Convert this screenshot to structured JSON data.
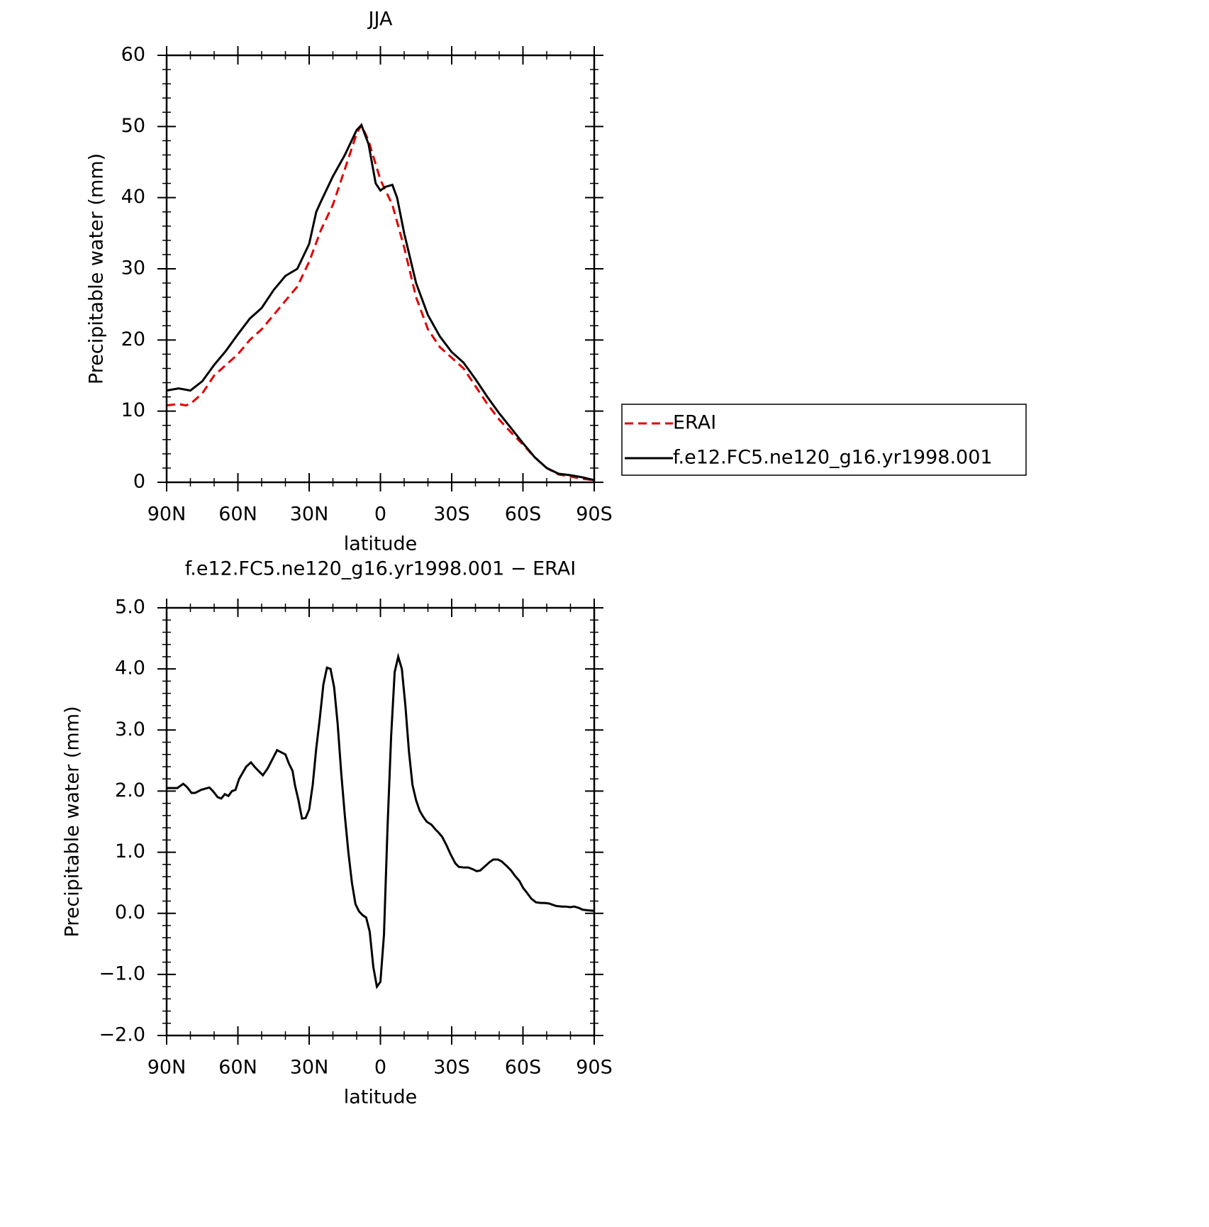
{
  "chart_data": [
    {
      "type": "line",
      "title": "JJA",
      "xlabel": "latitude",
      "ylabel": "Precipitable water (mm)",
      "xlim": [
        90,
        -90
      ],
      "xticks": [
        {
          "value": 90,
          "label": "90N"
        },
        {
          "value": 60,
          "label": "60N"
        },
        {
          "value": 30,
          "label": "30N"
        },
        0,
        {
          "value": -30,
          "label": "30S"
        },
        {
          "value": -60,
          "label": "60S"
        },
        {
          "value": -90,
          "label": "90S"
        }
      ],
      "ylim": [
        0,
        60
      ],
      "yticks": [
        0,
        10,
        20,
        30,
        40,
        50,
        60
      ],
      "legend": "right",
      "series": [
        {
          "name": "ERAI",
          "color": "#e00000",
          "style": "dashed",
          "x": [
            90,
            85,
            82,
            80,
            75,
            70,
            65,
            60,
            55,
            50,
            45,
            40,
            35,
            30,
            25,
            20,
            15,
            10,
            8,
            5,
            0,
            -5,
            -10,
            -15,
            -20,
            -25,
            -30,
            -35,
            -40,
            -45,
            -50,
            -55,
            -60,
            -65,
            -70,
            -75,
            -80,
            -85,
            -90
          ],
          "values": [
            10.8,
            11.0,
            10.8,
            11.0,
            12.5,
            15,
            16.5,
            18,
            20,
            21.5,
            23.5,
            25.5,
            27.5,
            31,
            35.5,
            39,
            44,
            49,
            50.2,
            48,
            42.5,
            39,
            33,
            26,
            21.5,
            19,
            17.5,
            16,
            13.5,
            11,
            8.8,
            7,
            5.3,
            3.5,
            2,
            1.1,
            0.8,
            0.5,
            0.3
          ]
        },
        {
          "name": "f.e12.FC5.ne120_g16.yr1998.001",
          "color": "#000000",
          "style": "solid",
          "x": [
            90,
            85,
            80,
            75,
            70,
            65,
            60,
            55,
            50,
            45,
            40,
            35,
            30,
            27,
            25,
            20,
            15,
            10,
            8,
            5,
            2,
            0,
            -2,
            -5,
            -7,
            -10,
            -15,
            -20,
            -25,
            -30,
            -35,
            -40,
            -45,
            -50,
            -55,
            -60,
            -65,
            -70,
            -75,
            -80,
            -85,
            -90
          ],
          "values": [
            12.9,
            13.2,
            12.9,
            14.2,
            16.5,
            18.5,
            20.8,
            23,
            24.5,
            27,
            29,
            30,
            33.5,
            38,
            39.5,
            43,
            46,
            49.5,
            50.2,
            47.5,
            42,
            41,
            41.5,
            41.8,
            40,
            35,
            28,
            23.5,
            20.5,
            18.3,
            16.8,
            14.5,
            12,
            9.7,
            7.6,
            5.5,
            3.5,
            2.0,
            1.2,
            1.0,
            0.7,
            0.3
          ]
        }
      ]
    },
    {
      "type": "line",
      "title": "f.e12.FC5.ne120_g16.yr1998.001 − ERAI",
      "xlabel": "latitude",
      "ylabel": "Precipitable water (mm)",
      "xlim": [
        90,
        -90
      ],
      "xticks": [
        {
          "value": 90,
          "label": "90N"
        },
        {
          "value": 60,
          "label": "60N"
        },
        {
          "value": 30,
          "label": "30N"
        },
        0,
        {
          "value": -30,
          "label": "30S"
        },
        {
          "value": -60,
          "label": "60S"
        },
        {
          "value": -90,
          "label": "90S"
        }
      ],
      "ylim": [
        -2,
        5
      ],
      "yticks": [
        {
          "value": -2,
          "label": "−2.0"
        },
        {
          "value": -1,
          "label": "−1.0"
        },
        {
          "value": 0,
          "label": "0.0"
        },
        {
          "value": 1,
          "label": "1.0"
        },
        {
          "value": 2,
          "label": "2.0"
        },
        {
          "value": 3,
          "label": "3.0"
        },
        {
          "value": 4,
          "label": "4.0"
        },
        {
          "value": 5,
          "label": "5.0"
        }
      ],
      "series": [
        {
          "color": "#000000",
          "style": "solid",
          "x": [
            90,
            85.5,
            83,
            81.5,
            79.5,
            78,
            75.5,
            72,
            70.5,
            68.5,
            67,
            65.5,
            64,
            62.5,
            61,
            59.5,
            58,
            56.5,
            54.5,
            53,
            51,
            49.5,
            47.5,
            45.5,
            43.5,
            41.5,
            40,
            38.5,
            37,
            36,
            34.5,
            33,
            31.5,
            30,
            28.5,
            27,
            25.5,
            24,
            22.5,
            21,
            19.5,
            18,
            16.5,
            15,
            13.5,
            12,
            10.5,
            9,
            7.5,
            6,
            4.5,
            3,
            1.5,
            0,
            -1.5,
            -3,
            -4.5,
            -6,
            -7.5,
            -9,
            -10.5,
            -12,
            -13.5,
            -15,
            -16.5,
            -18,
            -19.5,
            -21.5,
            -23,
            -24.5,
            -26,
            -28,
            -29.5,
            -31.5,
            -33,
            -35,
            -37,
            -39,
            -40.5,
            -42,
            -44,
            -46,
            -47.5,
            -49.5,
            -51,
            -53,
            -55,
            -56.5,
            -58.5,
            -60,
            -62,
            -63.5,
            -65.5,
            -67.5,
            -69,
            -71,
            -72.5,
            -74,
            -76.5,
            -78,
            -80,
            -81.5,
            -83.5,
            -85,
            -87,
            -90
          ],
          "values": [
            2.05,
            2.05,
            2.12,
            2.07,
            1.97,
            1.97,
            2.02,
            2.06,
            2.0,
            1.9,
            1.88,
            1.95,
            1.92,
            2.0,
            2.02,
            2.2,
            2.3,
            2.4,
            2.47,
            2.4,
            2.32,
            2.26,
            2.37,
            2.52,
            2.67,
            2.63,
            2.6,
            2.45,
            2.33,
            2.1,
            1.85,
            1.55,
            1.56,
            1.7,
            2.1,
            2.7,
            3.2,
            3.75,
            4.02,
            4.0,
            3.7,
            3.1,
            2.3,
            1.6,
            1.0,
            0.5,
            0.15,
            0.03,
            -0.03,
            -0.07,
            -0.3,
            -0.88,
            -1.2,
            -1.12,
            -0.35,
            1.4,
            2.9,
            3.95,
            4.2,
            4.0,
            3.4,
            2.65,
            2.1,
            1.85,
            1.68,
            1.58,
            1.5,
            1.45,
            1.38,
            1.32,
            1.25,
            1.1,
            0.97,
            0.82,
            0.76,
            0.75,
            0.75,
            0.72,
            0.69,
            0.7,
            0.77,
            0.84,
            0.88,
            0.88,
            0.85,
            0.78,
            0.7,
            0.62,
            0.53,
            0.42,
            0.32,
            0.24,
            0.18,
            0.17,
            0.17,
            0.16,
            0.14,
            0.12,
            0.11,
            0.11,
            0.1,
            0.11,
            0.09,
            0.06,
            0.05,
            0.04
          ]
        }
      ]
    }
  ]
}
